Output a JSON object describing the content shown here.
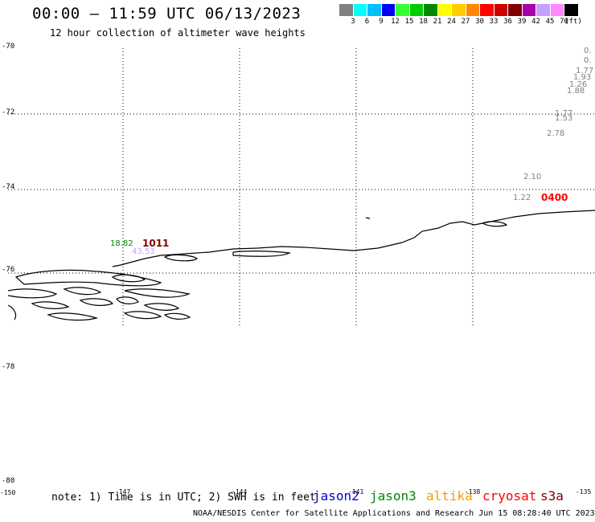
{
  "header": {
    "title": "00:00 – 11:59 UTC 06/13/2023",
    "subtitle": "12 hour collection of altimeter wave heights"
  },
  "legend": {
    "colors": [
      "#808080",
      "#00ffff",
      "#00bfff",
      "#0000ff",
      "#33ff33",
      "#00cc00",
      "#008800",
      "#ffff00",
      "#ffcc00",
      "#ff8800",
      "#ff0000",
      "#cc0000",
      "#800000",
      "#aa00aa",
      "#c8a0ff",
      "#ff88ff",
      "#000000"
    ],
    "labels": [
      "3",
      "6",
      "9",
      "12",
      "15",
      "18",
      "21",
      "24",
      "27",
      "30",
      "33",
      "36",
      "39",
      "42",
      "45",
      "70",
      "(ft)"
    ]
  },
  "lat_labels": [
    "-70",
    "-72",
    "-74",
    "-76",
    "-78",
    "-78",
    "-80"
  ],
  "lon_labels": [
    "-150",
    "-147",
    "-144",
    "-141",
    "-138",
    "-135"
  ],
  "wave_labels": [
    {
      "text": "0.",
      "color": "#808080"
    },
    {
      "text": "0.",
      "color": "#808080"
    },
    {
      "text": "1.77",
      "color": "#808080"
    },
    {
      "text": "1.93",
      "color": "#808080"
    },
    {
      "text": "1.26",
      "color": "#808080"
    },
    {
      "text": "1.88",
      "color": "#808080"
    },
    {
      "text": "1.77",
      "color": "#808080"
    },
    {
      "text": "1.53",
      "color": "#808080"
    },
    {
      "text": "2.78",
      "color": "#808080"
    },
    {
      "text": "2.10",
      "color": "#808080"
    },
    {
      "text": "1.22",
      "color": "#808080"
    },
    {
      "text": "18.82",
      "color": "#008800"
    },
    {
      "text": "43.53",
      "color": "#c8a0ff"
    }
  ],
  "time_labels": [
    {
      "text": "0400",
      "color": "#ff0000"
    },
    {
      "text": "1011",
      "color": "#800000"
    }
  ],
  "note": "note: 1) Time is in UTC; 2) SWH is in feet",
  "satellites": [
    {
      "name": "jason2",
      "color": "#0000cc"
    },
    {
      "name": "jason3",
      "color": "#008800"
    },
    {
      "name": "altika",
      "color": "#ff9900"
    },
    {
      "name": "cryosat",
      "color": "#ff0000"
    },
    {
      "name": "s3a",
      "color": "#800000"
    }
  ],
  "footer": "NOAA/NESDIS Center for Satellite Applications and Research    Jun 15 08:28:40 UTC 2023"
}
